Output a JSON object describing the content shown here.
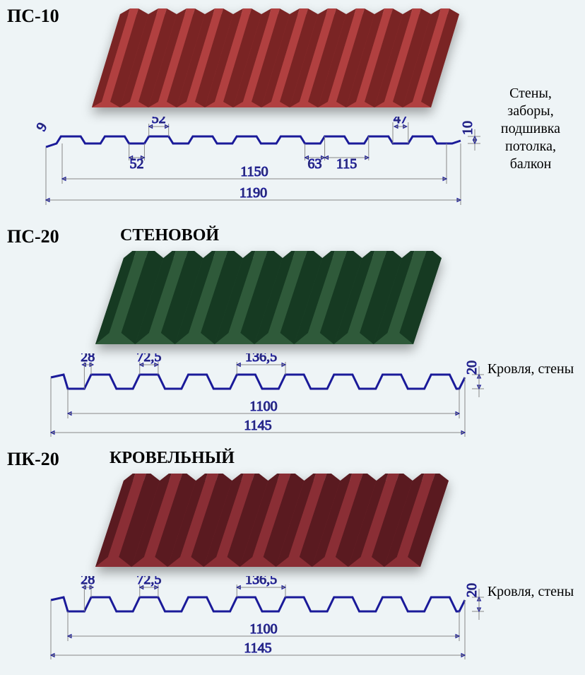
{
  "sections": [
    {
      "model": "ПС-10",
      "subtitle": null,
      "usage": "Стены, заборы, подшивка потолка, балкон",
      "sheet_color_light": "#b14040",
      "sheet_color_dark": "#7a2424",
      "profile_height": 10,
      "ribs_3d": 12,
      "dims_top": [
        {
          "label": "52",
          "pos": "rib_top"
        },
        {
          "label": "47",
          "pos": "rib_gap"
        },
        {
          "label": "10",
          "pos": "height"
        }
      ],
      "dims_bottom": [
        {
          "label": "52",
          "pos": "rib_bot"
        },
        {
          "label": "63",
          "pos": "rib_gap2"
        },
        {
          "label": "115",
          "pos": "pitch"
        }
      ],
      "overall_inner": "1150",
      "overall_outer": "1190",
      "left_angle": "9"
    },
    {
      "model": "ПС-20",
      "subtitle": "СТЕНОВОЙ",
      "usage": "Кровля, стены",
      "sheet_color_light": "#2f5a3a",
      "sheet_color_dark": "#163a22",
      "profile_height": 20,
      "ribs_3d": 8,
      "dims_top": [
        {
          "label": "28",
          "pos": "rib_top1"
        },
        {
          "label": "72,5",
          "pos": "rib_top2"
        },
        {
          "label": "136,5",
          "pos": "pitch"
        },
        {
          "label": "20",
          "pos": "height"
        }
      ],
      "overall_inner": "1100",
      "overall_outer": "1145"
    },
    {
      "model": "ПК-20",
      "subtitle": "КРОВЕЛЬНЫЙ",
      "usage": "Кровля, стены",
      "sheet_color_light": "#8a2e35",
      "sheet_color_dark": "#5a1a20",
      "profile_height": 20,
      "ribs_3d": 9,
      "dims_top": [
        {
          "label": "28",
          "pos": "rib_top1"
        },
        {
          "label": "72,5",
          "pos": "rib_top2"
        },
        {
          "label": "136,5",
          "pos": "pitch"
        },
        {
          "label": "20",
          "pos": "height"
        }
      ],
      "overall_inner": "1100",
      "overall_outer": "1145"
    }
  ],
  "layout": {
    "section_heights": [
      320,
      315,
      318
    ],
    "profile_stroke": "#1a1a99",
    "dim_stroke": "#888888",
    "background": "#eef4f6"
  }
}
